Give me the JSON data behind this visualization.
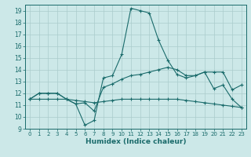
{
  "xlabel": "Humidex (Indice chaleur)",
  "bg_color": "#cce8e8",
  "grid_color": "#aacccc",
  "line_color": "#1a6b6b",
  "xlim": [
    -0.5,
    23.5
  ],
  "ylim": [
    9,
    19.5
  ],
  "yticks": [
    9,
    10,
    11,
    12,
    13,
    14,
    15,
    16,
    17,
    18,
    19
  ],
  "xticks": [
    0,
    1,
    2,
    3,
    4,
    5,
    6,
    7,
    8,
    9,
    10,
    11,
    12,
    13,
    14,
    15,
    16,
    17,
    18,
    19,
    20,
    21,
    22,
    23
  ],
  "line1_x": [
    0,
    1,
    2,
    3,
    4,
    5,
    6,
    7,
    8,
    9,
    10,
    11,
    12,
    13,
    14,
    15,
    16,
    17,
    18,
    19,
    20,
    21,
    22,
    23
  ],
  "line1_y": [
    11.5,
    12.0,
    12.0,
    12.0,
    11.5,
    11.1,
    11.2,
    10.5,
    12.5,
    12.8,
    13.2,
    13.5,
    13.6,
    13.8,
    14.0,
    14.2,
    14.0,
    13.5,
    13.5,
    13.8,
    13.8,
    13.8,
    12.3,
    12.7
  ],
  "line2_x": [
    0,
    1,
    2,
    3,
    4,
    5,
    6,
    7,
    8,
    9,
    10,
    11,
    12,
    13,
    14,
    15,
    16,
    17,
    18,
    19,
    20,
    21,
    22,
    23
  ],
  "line2_y": [
    11.5,
    12.0,
    12.0,
    12.0,
    11.5,
    11.1,
    9.3,
    9.7,
    13.3,
    13.5,
    15.3,
    19.2,
    19.0,
    18.8,
    16.5,
    14.8,
    13.6,
    13.3,
    13.5,
    13.8,
    12.4,
    12.7,
    11.5,
    10.8
  ],
  "line3_x": [
    0,
    1,
    2,
    3,
    4,
    5,
    6,
    7,
    8,
    9,
    10,
    11,
    12,
    13,
    14,
    15,
    16,
    17,
    18,
    19,
    20,
    21,
    22,
    23
  ],
  "line3_y": [
    11.5,
    11.5,
    11.5,
    11.5,
    11.5,
    11.4,
    11.3,
    11.2,
    11.3,
    11.4,
    11.5,
    11.5,
    11.5,
    11.5,
    11.5,
    11.5,
    11.5,
    11.4,
    11.3,
    11.2,
    11.1,
    11.0,
    10.9,
    10.8
  ]
}
